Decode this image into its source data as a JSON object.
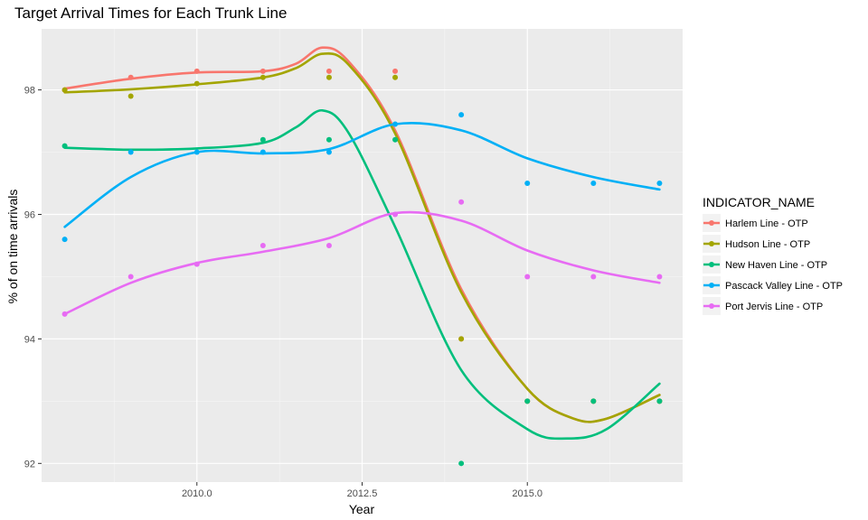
{
  "chart_data": {
    "type": "line",
    "title": "Target Arrival Times for Each Trunk Line",
    "xlabel": "Year",
    "ylabel": "% of on time arrivals",
    "xlim": [
      2007.65,
      2017.35
    ],
    "ylim": [
      91.7,
      98.98
    ],
    "x_ticks": [
      2010,
      2012.5,
      2015
    ],
    "x_tick_labels": [
      "2010.0",
      "2012.5",
      "2015.0"
    ],
    "y_ticks": [
      92,
      94,
      96,
      98
    ],
    "y_tick_labels": [
      "92",
      "94",
      "96",
      "98"
    ],
    "grid": true,
    "legend_title": "INDICATOR_NAME",
    "legend_position": "right",
    "series": [
      {
        "name": "Harlem Line - OTP",
        "color": "#F8766D",
        "points": [
          [
            2008,
            98.0
          ],
          [
            2009,
            98.2
          ],
          [
            2010,
            98.3
          ],
          [
            2011,
            98.3
          ],
          [
            2012,
            98.3
          ],
          [
            2013,
            98.3
          ],
          [
            2014,
            94.0
          ],
          [
            2015,
            93.0
          ],
          [
            2016,
            93.0
          ],
          [
            2017,
            93.0
          ]
        ],
        "smooth": [
          [
            2008,
            98.02
          ],
          [
            2009,
            98.18
          ],
          [
            2010,
            98.28
          ],
          [
            2011,
            98.3
          ],
          [
            2011.5,
            98.42
          ],
          [
            2011.9,
            98.68
          ],
          [
            2012.3,
            98.45
          ],
          [
            2013,
            97.35
          ],
          [
            2014,
            94.8
          ],
          [
            2015,
            93.2
          ],
          [
            2015.7,
            92.72
          ],
          [
            2016.2,
            92.72
          ],
          [
            2017,
            93.1
          ]
        ]
      },
      {
        "name": "Hudson Line - OTP",
        "color": "#A3A500",
        "points": [
          [
            2008,
            98.0
          ],
          [
            2009,
            97.9
          ],
          [
            2010,
            98.1
          ],
          [
            2011,
            98.2
          ],
          [
            2012,
            98.2
          ],
          [
            2013,
            98.2
          ],
          [
            2014,
            94.0
          ],
          [
            2015,
            93.0
          ],
          [
            2016,
            93.0
          ],
          [
            2017,
            93.0
          ]
        ],
        "smooth": [
          [
            2008,
            97.96
          ],
          [
            2009,
            98.01
          ],
          [
            2010,
            98.09
          ],
          [
            2011,
            98.2
          ],
          [
            2011.5,
            98.35
          ],
          [
            2011.9,
            98.58
          ],
          [
            2012.3,
            98.4
          ],
          [
            2013,
            97.3
          ],
          [
            2014,
            94.75
          ],
          [
            2015,
            93.2
          ],
          [
            2015.7,
            92.72
          ],
          [
            2016.2,
            92.72
          ],
          [
            2017,
            93.1
          ]
        ]
      },
      {
        "name": "New Haven Line - OTP",
        "color": "#00BF7D",
        "points": [
          [
            2008,
            97.1
          ],
          [
            2011,
            97.2
          ],
          [
            2012,
            97.2
          ],
          [
            2013,
            97.2
          ],
          [
            2014,
            92.0
          ],
          [
            2015,
            93.0
          ],
          [
            2016,
            93.0
          ],
          [
            2017,
            93.0
          ]
        ],
        "smooth": [
          [
            2008,
            97.07
          ],
          [
            2009,
            97.04
          ],
          [
            2010,
            97.06
          ],
          [
            2011,
            97.15
          ],
          [
            2011.5,
            97.4
          ],
          [
            2011.9,
            97.67
          ],
          [
            2012.3,
            97.3
          ],
          [
            2013,
            95.8
          ],
          [
            2014,
            93.5
          ],
          [
            2015,
            92.55
          ],
          [
            2015.6,
            92.4
          ],
          [
            2016.2,
            92.55
          ],
          [
            2017,
            93.28
          ]
        ]
      },
      {
        "name": "Pascack Valley Line - OTP",
        "color": "#00B0F6",
        "points": [
          [
            2008,
            95.6
          ],
          [
            2009,
            97.0
          ],
          [
            2010,
            97.0
          ],
          [
            2011,
            97.0
          ],
          [
            2012,
            97.0
          ],
          [
            2013,
            97.45
          ],
          [
            2014,
            97.6
          ],
          [
            2015,
            96.5
          ],
          [
            2016,
            96.5
          ],
          [
            2017,
            96.5
          ]
        ],
        "smooth": [
          [
            2008,
            95.8
          ],
          [
            2009,
            96.6
          ],
          [
            2010,
            97.0
          ],
          [
            2011,
            96.98
          ],
          [
            2012,
            97.05
          ],
          [
            2013,
            97.45
          ],
          [
            2014,
            97.35
          ],
          [
            2015,
            96.9
          ],
          [
            2016,
            96.6
          ],
          [
            2017,
            96.4
          ]
        ]
      },
      {
        "name": "Port Jervis Line - OTP",
        "color": "#E76BF3",
        "points": [
          [
            2008,
            94.4
          ],
          [
            2009,
            95.0
          ],
          [
            2010,
            95.2
          ],
          [
            2011,
            95.5
          ],
          [
            2012,
            95.5
          ],
          [
            2013,
            96.0
          ],
          [
            2014,
            96.2
          ],
          [
            2015,
            95.0
          ],
          [
            2016,
            95.0
          ],
          [
            2017,
            95.0
          ]
        ],
        "smooth": [
          [
            2008,
            94.4
          ],
          [
            2009,
            94.9
          ],
          [
            2010,
            95.22
          ],
          [
            2011,
            95.4
          ],
          [
            2012,
            95.62
          ],
          [
            2013,
            96.02
          ],
          [
            2014,
            95.9
          ],
          [
            2015,
            95.42
          ],
          [
            2016,
            95.1
          ],
          [
            2017,
            94.9
          ]
        ]
      }
    ]
  }
}
